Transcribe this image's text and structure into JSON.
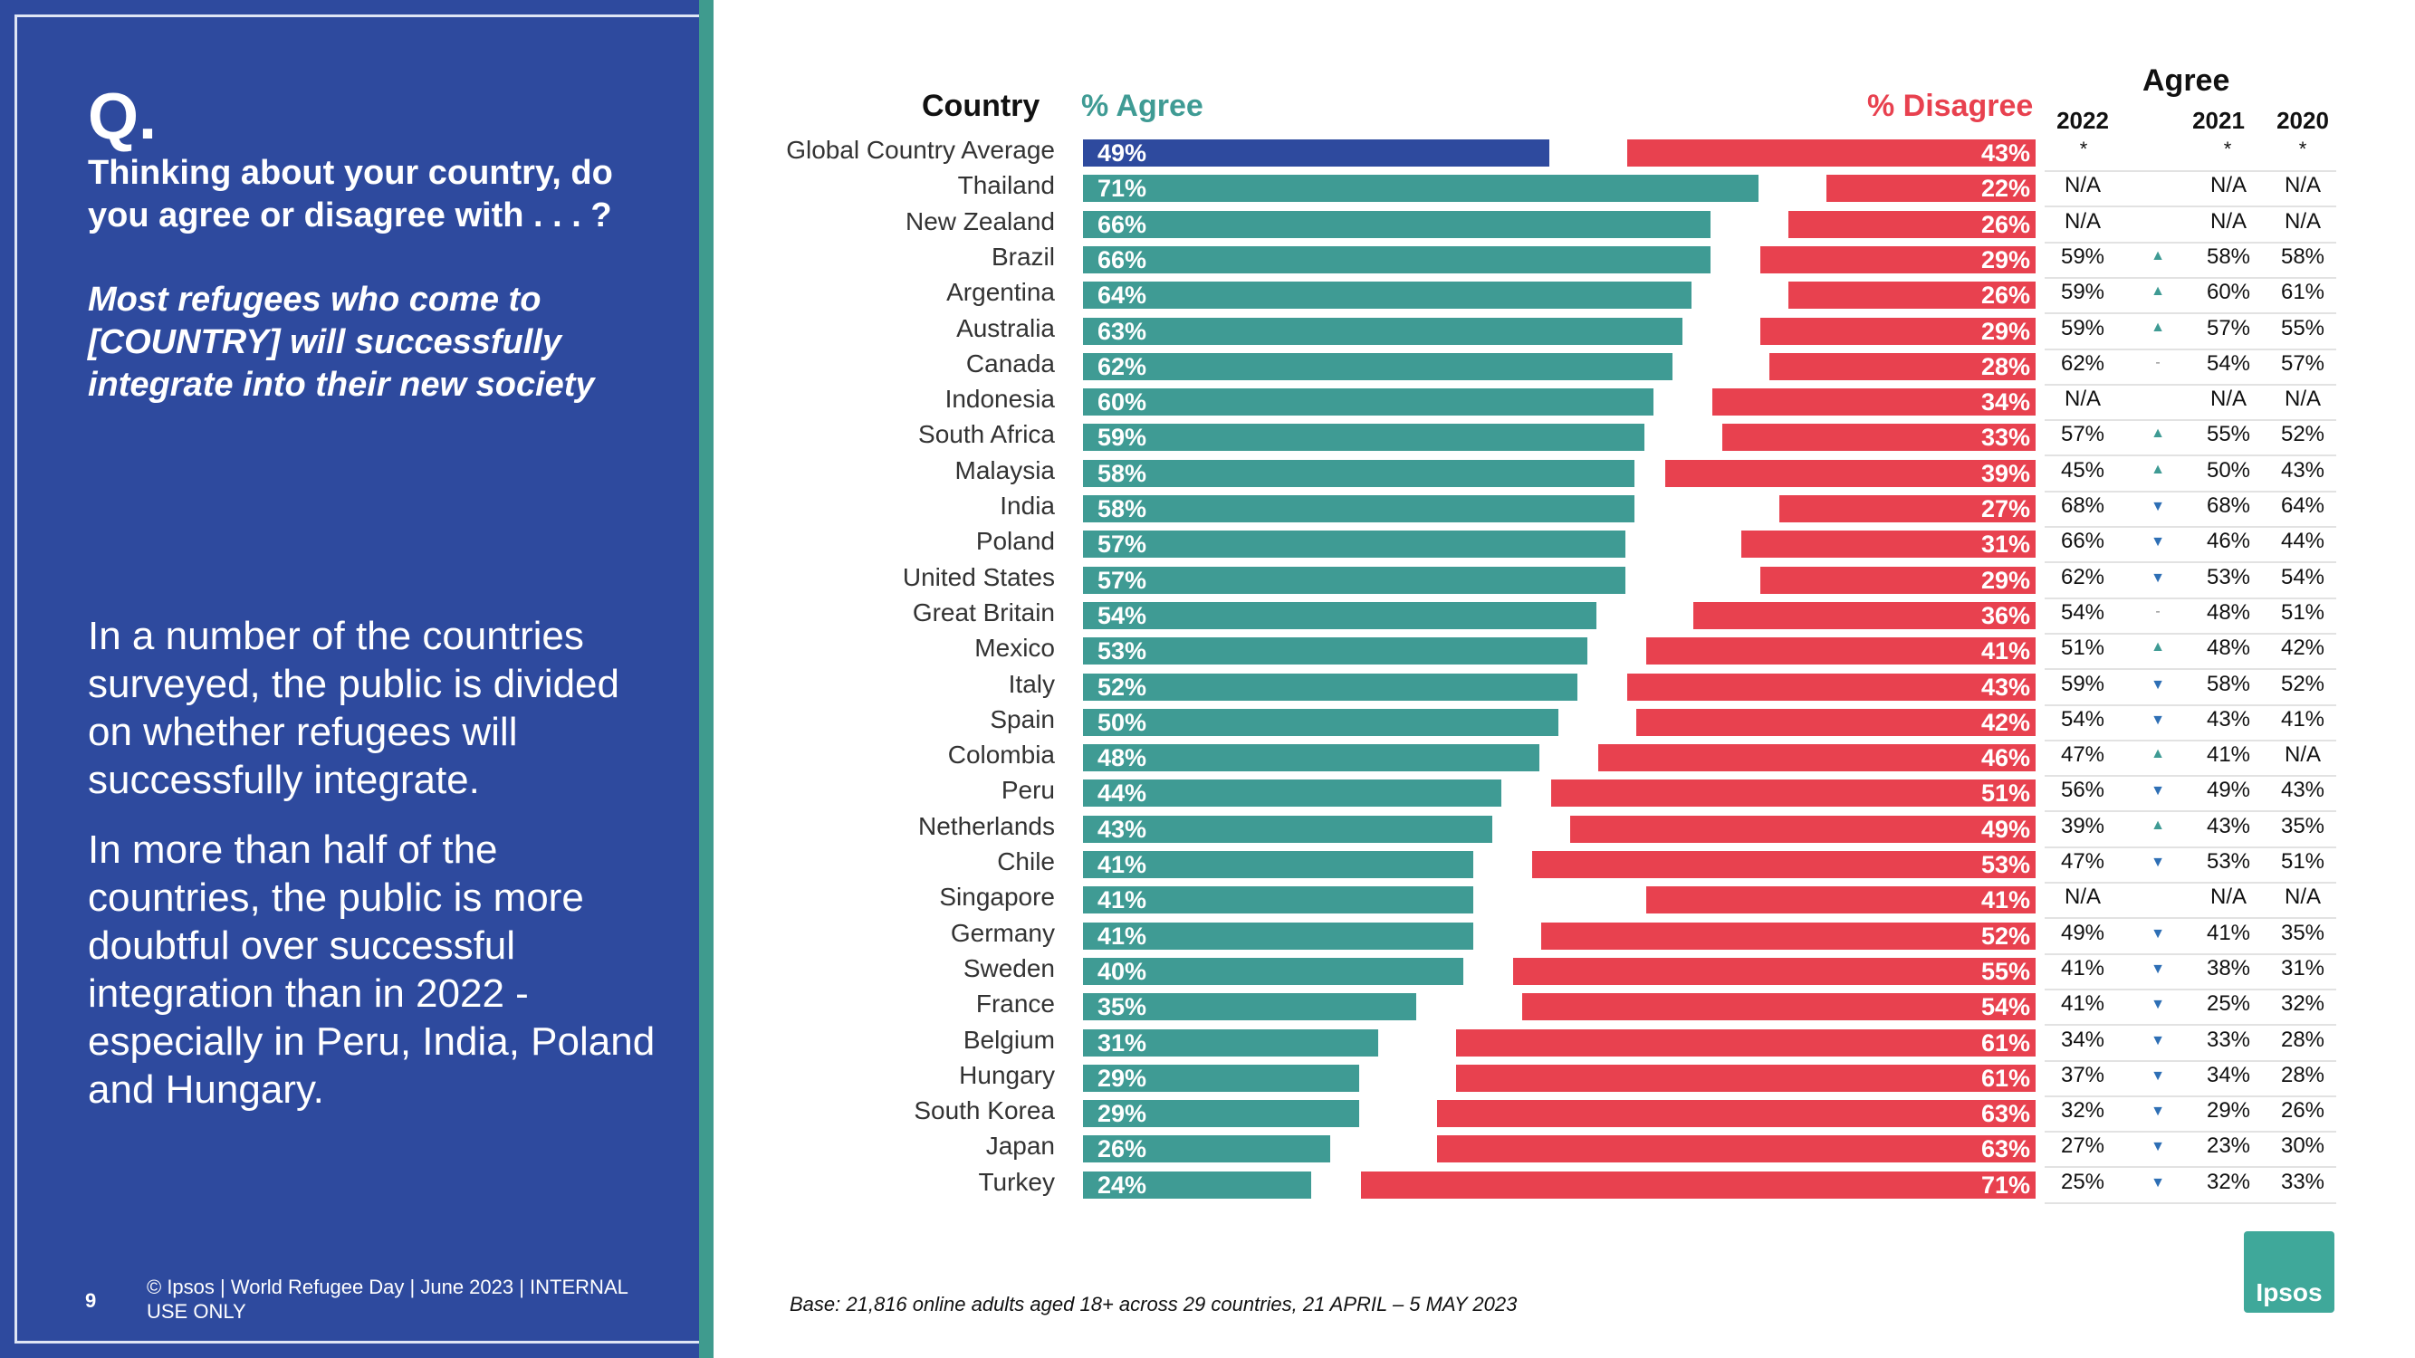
{
  "colors": {
    "panel": "#2e4a9e",
    "agree": "#3f9b94",
    "global": "#2e4a9e",
    "disagree": "#e8414f",
    "up": "#3f9b94",
    "down": "#2e6fb5"
  },
  "left": {
    "q": "Q.",
    "question": "Thinking about your country, do you agree or disagree with . . . ?",
    "statement": "Most refugees who come to [COUNTRY] will successfully integrate into their new society",
    "para1": "In a number of the countries surveyed, the public is divided on whether refugees will successfully integrate.",
    "para2": "In more than half of the countries, the public is more doubtful over successful integration than in 2022 - especially in Peru, India, Poland and Hungary.",
    "page": "9",
    "footer": "© Ipsos | World Refugee Day | June 2023 | INTERNAL USE ONLY"
  },
  "base": "Base: 21,816 online adults aged 18+ across 29 countries,  21 APRIL – 5 MAY 2023",
  "logo": "Ipsos",
  "chart_data": {
    "type": "bar",
    "headers": {
      "country": "Country",
      "agree": "% Agree",
      "disagree": "% Disagree",
      "trend": "Agree"
    },
    "years": [
      "2022",
      "2021",
      "2020"
    ],
    "year_stars": [
      "*",
      "*",
      "*"
    ],
    "rows": [
      {
        "country": "Global Country Average",
        "agree": 49,
        "disagree": 43,
        "agree_label": "49%",
        "disagree_label": "43%",
        "y2022": "",
        "arrow": "",
        "y2021": "",
        "y2020": "",
        "global": true
      },
      {
        "country": "Thailand",
        "agree": 71,
        "disagree": 22,
        "agree_label": "71%",
        "disagree_label": "22%",
        "y2022": "N/A",
        "arrow": "",
        "y2021": "N/A",
        "y2020": "N/A"
      },
      {
        "country": "New Zealand",
        "agree": 66,
        "disagree": 26,
        "agree_label": "66%",
        "disagree_label": "26%",
        "y2022": "N/A",
        "arrow": "",
        "y2021": "N/A",
        "y2020": "N/A"
      },
      {
        "country": "Brazil",
        "agree": 66,
        "disagree": 29,
        "agree_label": "66%",
        "disagree_label": "29%",
        "y2022": "59%",
        "arrow": "up",
        "y2021": "58%",
        "y2020": "58%"
      },
      {
        "country": "Argentina",
        "agree": 64,
        "disagree": 26,
        "agree_label": "64%",
        "disagree_label": "26%",
        "y2022": "59%",
        "arrow": "up",
        "y2021": "60%",
        "y2020": "61%"
      },
      {
        "country": "Australia",
        "agree": 63,
        "disagree": 29,
        "agree_label": "63%",
        "disagree_label": "29%",
        "y2022": "59%",
        "arrow": "up",
        "y2021": "57%",
        "y2020": "55%"
      },
      {
        "country": "Canada",
        "agree": 62,
        "disagree": 28,
        "agree_label": "62%",
        "disagree_label": "28%",
        "y2022": "62%",
        "arrow": "flat",
        "y2021": "54%",
        "y2020": "57%"
      },
      {
        "country": "Indonesia",
        "agree": 60,
        "disagree": 34,
        "agree_label": "60%",
        "disagree_label": "34%",
        "y2022": "N/A",
        "arrow": "",
        "y2021": "N/A",
        "y2020": "N/A"
      },
      {
        "country": "South Africa",
        "agree": 59,
        "disagree": 33,
        "agree_label": "59%",
        "disagree_label": "33%",
        "y2022": "57%",
        "arrow": "up",
        "y2021": "55%",
        "y2020": "52%"
      },
      {
        "country": "Malaysia",
        "agree": 58,
        "disagree": 39,
        "agree_label": "58%",
        "disagree_label": "39%",
        "y2022": "45%",
        "arrow": "up",
        "y2021": "50%",
        "y2020": "43%"
      },
      {
        "country": "India",
        "agree": 58,
        "disagree": 27,
        "agree_label": "58%",
        "disagree_label": "27%",
        "y2022": "68%",
        "arrow": "down",
        "y2021": "68%",
        "y2020": "64%"
      },
      {
        "country": "Poland",
        "agree": 57,
        "disagree": 31,
        "agree_label": "57%",
        "disagree_label": "31%",
        "y2022": "66%",
        "arrow": "down",
        "y2021": "46%",
        "y2020": "44%"
      },
      {
        "country": "United States",
        "agree": 57,
        "disagree": 29,
        "agree_label": "57%",
        "disagree_label": "29%",
        "y2022": "62%",
        "arrow": "down",
        "y2021": "53%",
        "y2020": "54%"
      },
      {
        "country": "Great Britain",
        "agree": 54,
        "disagree": 36,
        "agree_label": "54%",
        "disagree_label": "36%",
        "y2022": "54%",
        "arrow": "flat",
        "y2021": "48%",
        "y2020": "51%"
      },
      {
        "country": "Mexico",
        "agree": 53,
        "disagree": 41,
        "agree_label": "53%",
        "disagree_label": "41%",
        "y2022": "51%",
        "arrow": "up",
        "y2021": "48%",
        "y2020": "42%"
      },
      {
        "country": "Italy",
        "agree": 52,
        "disagree": 43,
        "agree_label": "52%",
        "disagree_label": "43%",
        "y2022": "59%",
        "arrow": "down",
        "y2021": "58%",
        "y2020": "52%"
      },
      {
        "country": "Spain",
        "agree": 50,
        "disagree": 42,
        "agree_label": "50%",
        "disagree_label": "42%",
        "y2022": "54%",
        "arrow": "down",
        "y2021": "43%",
        "y2020": "41%"
      },
      {
        "country": "Colombia",
        "agree": 48,
        "disagree": 46,
        "agree_label": "48%",
        "disagree_label": "46%",
        "y2022": "47%",
        "arrow": "up",
        "y2021": "41%",
        "y2020": "N/A"
      },
      {
        "country": "Peru",
        "agree": 44,
        "disagree": 51,
        "agree_label": "44%",
        "disagree_label": "51%",
        "y2022": "56%",
        "arrow": "down",
        "y2021": "49%",
        "y2020": "43%"
      },
      {
        "country": "Netherlands",
        "agree": 43,
        "disagree": 49,
        "agree_label": "43%",
        "disagree_label": "49%",
        "y2022": "39%",
        "arrow": "up",
        "y2021": "43%",
        "y2020": "35%"
      },
      {
        "country": "Chile",
        "agree": 41,
        "disagree": 53,
        "agree_label": "41%",
        "disagree_label": "53%",
        "y2022": "47%",
        "arrow": "down",
        "y2021": "53%",
        "y2020": "51%"
      },
      {
        "country": "Singapore",
        "agree": 41,
        "disagree": 41,
        "agree_label": "41%",
        "disagree_label": "41%",
        "y2022": "N/A",
        "arrow": "",
        "y2021": "N/A",
        "y2020": "N/A"
      },
      {
        "country": "Germany",
        "agree": 41,
        "disagree": 52,
        "agree_label": "41%",
        "disagree_label": "52%",
        "y2022": "49%",
        "arrow": "down",
        "y2021": "41%",
        "y2020": "35%"
      },
      {
        "country": "Sweden",
        "agree": 40,
        "disagree": 55,
        "agree_label": "40%",
        "disagree_label": "55%",
        "y2022": "41%",
        "arrow": "down",
        "y2021": "38%",
        "y2020": "31%"
      },
      {
        "country": "France",
        "agree": 35,
        "disagree": 54,
        "agree_label": "35%",
        "disagree_label": "54%",
        "y2022": "41%",
        "arrow": "down",
        "y2021": "25%",
        "y2020": "32%"
      },
      {
        "country": "Belgium",
        "agree": 31,
        "disagree": 61,
        "agree_label": "31%",
        "disagree_label": "61%",
        "y2022": "34%",
        "arrow": "down",
        "y2021": "33%",
        "y2020": "28%"
      },
      {
        "country": "Hungary",
        "agree": 29,
        "disagree": 61,
        "agree_label": "29%",
        "disagree_label": "61%",
        "y2022": "37%",
        "arrow": "down",
        "y2021": "34%",
        "y2020": "28%"
      },
      {
        "country": "South Korea",
        "agree": 29,
        "disagree": 63,
        "agree_label": "29%",
        "disagree_label": "63%",
        "y2022": "32%",
        "arrow": "down",
        "y2021": "29%",
        "y2020": "26%"
      },
      {
        "country": "Japan",
        "agree": 26,
        "disagree": 63,
        "agree_label": "26%",
        "disagree_label": "63%",
        "y2022": "27%",
        "arrow": "down",
        "y2021": "23%",
        "y2020": "30%"
      },
      {
        "country": "Turkey",
        "agree": 24,
        "disagree": 71,
        "agree_label": "24%",
        "disagree_label": "71%",
        "y2022": "25%",
        "arrow": "down",
        "y2021": "32%",
        "y2020": "33%"
      }
    ]
  }
}
